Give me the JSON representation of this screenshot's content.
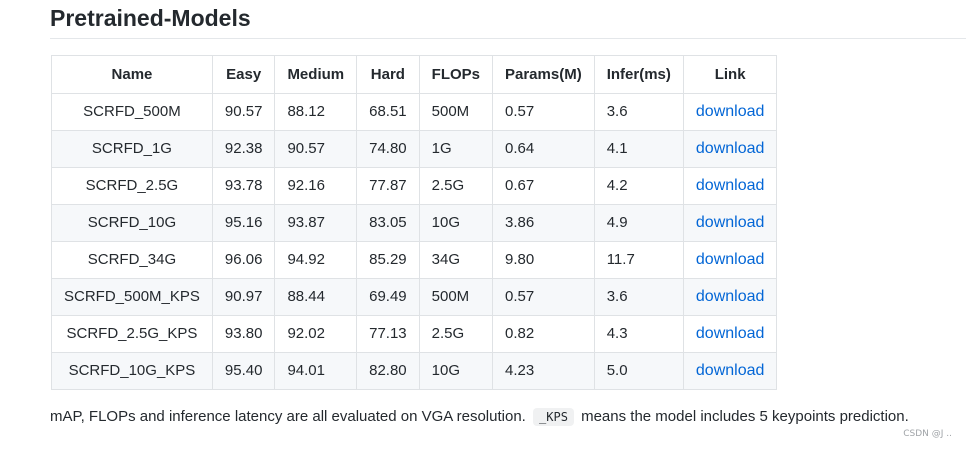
{
  "heading": "Pretrained-Models",
  "table": {
    "headers": [
      "Name",
      "Easy",
      "Medium",
      "Hard",
      "FLOPs",
      "Params(M)",
      "Infer(ms)",
      "Link"
    ],
    "rows": [
      [
        "SCRFD_500M",
        "90.57",
        "88.12",
        "68.51",
        "500M",
        "0.57",
        "3.6",
        "download"
      ],
      [
        "SCRFD_1G",
        "92.38",
        "90.57",
        "74.80",
        "1G",
        "0.64",
        "4.1",
        "download"
      ],
      [
        "SCRFD_2.5G",
        "93.78",
        "92.16",
        "77.87",
        "2.5G",
        "0.67",
        "4.2",
        "download"
      ],
      [
        "SCRFD_10G",
        "95.16",
        "93.87",
        "83.05",
        "10G",
        "3.86",
        "4.9",
        "download"
      ],
      [
        "SCRFD_34G",
        "96.06",
        "94.92",
        "85.29",
        "34G",
        "9.80",
        "11.7",
        "download"
      ],
      [
        "SCRFD_500M_KPS",
        "90.97",
        "88.44",
        "69.49",
        "500M",
        "0.57",
        "3.6",
        "download"
      ],
      [
        "SCRFD_2.5G_KPS",
        "93.80",
        "92.02",
        "77.13",
        "2.5G",
        "0.82",
        "4.3",
        "download"
      ],
      [
        "SCRFD_10G_KPS",
        "95.40",
        "94.01",
        "82.80",
        "10G",
        "4.23",
        "5.0",
        "download"
      ]
    ]
  },
  "note": {
    "before": "mAP, FLOPs and inference latency are all evaluated on VGA resolution.",
    "code": "_KPS",
    "after": "means the model includes 5 keypoints prediction."
  },
  "watermark": "CSDN @J ..",
  "colors": {
    "link": "#0366d6",
    "stripe": "#f6f8fa",
    "border": "#dfe2e5"
  }
}
